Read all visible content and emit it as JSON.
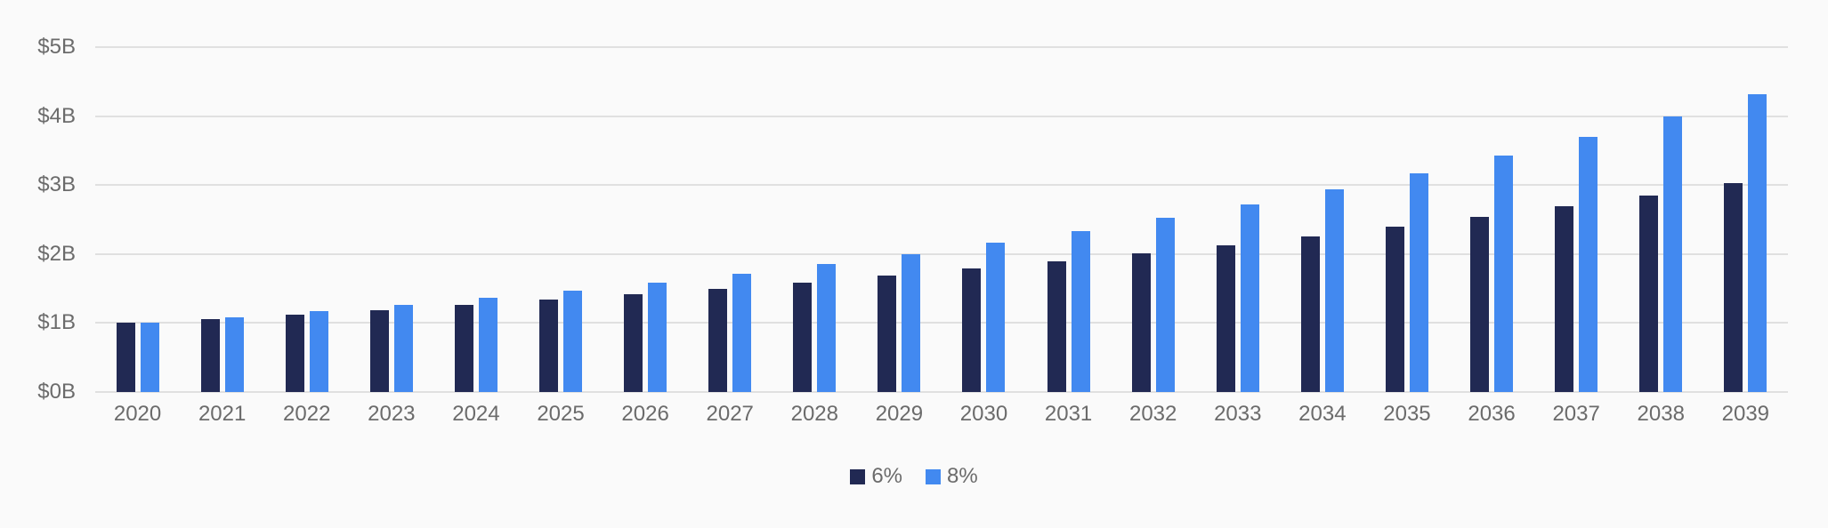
{
  "chart_data": {
    "type": "bar",
    "title": "",
    "xlabel": "",
    "ylabel": "",
    "categories": [
      "2020",
      "2021",
      "2022",
      "2023",
      "2024",
      "2025",
      "2026",
      "2027",
      "2028",
      "2029",
      "2030",
      "2031",
      "2032",
      "2033",
      "2034",
      "2035",
      "2036",
      "2037",
      "2038",
      "2039"
    ],
    "series": [
      {
        "name": "6%",
        "color": "#212953",
        "values": [
          1.0,
          1.06,
          1.12,
          1.19,
          1.26,
          1.34,
          1.42,
          1.5,
          1.59,
          1.69,
          1.79,
          1.9,
          2.01,
          2.13,
          2.26,
          2.4,
          2.54,
          2.69,
          2.85,
          3.03
        ]
      },
      {
        "name": "8%",
        "color": "#4289f0",
        "values": [
          1.0,
          1.08,
          1.17,
          1.26,
          1.36,
          1.47,
          1.59,
          1.71,
          1.85,
          2.0,
          2.16,
          2.33,
          2.52,
          2.72,
          2.94,
          3.17,
          3.43,
          3.7,
          4.0,
          4.32
        ]
      }
    ],
    "y_axis": {
      "ticks": [
        {
          "label": "$5B",
          "value": 5
        },
        {
          "label": "$4B",
          "value": 4
        },
        {
          "label": "$3B",
          "value": 3
        },
        {
          "label": "$2B",
          "value": 2
        },
        {
          "label": "$1B",
          "value": 1
        },
        {
          "label": "$0B",
          "value": 0
        }
      ],
      "lim": [
        0,
        5
      ]
    },
    "grid": true,
    "legend_position": "bottom-center"
  },
  "colors": {
    "background": "#fafafa",
    "gridline": "#e0e0e0",
    "axis_text": "#6b6b6b",
    "series_6pct": "#212953",
    "series_8pct": "#4289f0"
  }
}
